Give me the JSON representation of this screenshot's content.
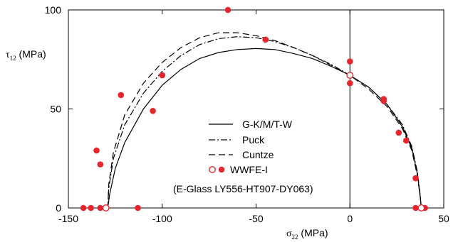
{
  "chart_data": {
    "type": "scatter",
    "title": "",
    "xlabel": {
      "symbol": "σ",
      "sub": "22",
      "unit": " (MPa)"
    },
    "ylabel": {
      "symbol": "τ",
      "sub": "12",
      "unit": " (MPa)"
    },
    "xlim": [
      -150,
      50
    ],
    "ylim": [
      0,
      100
    ],
    "xticks": [
      -150,
      -100,
      -50,
      0,
      50
    ],
    "yticks": [
      0,
      50,
      100
    ],
    "grid": false,
    "legend_position": "center",
    "series": [
      {
        "name": "G-K/M/T-W",
        "kind": "line",
        "style": "solid",
        "points": [
          [
            -129,
            0
          ],
          [
            -128,
            7
          ],
          [
            -125,
            20
          ],
          [
            -120,
            33
          ],
          [
            -110,
            50
          ],
          [
            -100,
            62
          ],
          [
            -90,
            70
          ],
          [
            -80,
            75.5
          ],
          [
            -70,
            78.5
          ],
          [
            -60,
            80
          ],
          [
            -50,
            80.5
          ],
          [
            -40,
            80
          ],
          [
            -30,
            78
          ],
          [
            -20,
            75.5
          ],
          [
            -10,
            71.5
          ],
          [
            0,
            67
          ],
          [
            10,
            61
          ],
          [
            20,
            52
          ],
          [
            28,
            41
          ],
          [
            33,
            30
          ],
          [
            36,
            17
          ],
          [
            37.5,
            5
          ],
          [
            38,
            0
          ]
        ]
      },
      {
        "name": "Puck",
        "kind": "line",
        "style": "dashdot",
        "points": [
          [
            -129,
            0
          ],
          [
            -128.5,
            10
          ],
          [
            -126,
            25
          ],
          [
            -120,
            42
          ],
          [
            -110,
            58
          ],
          [
            -100,
            69
          ],
          [
            -90,
            77
          ],
          [
            -80,
            82.5
          ],
          [
            -70,
            85.5
          ],
          [
            -60,
            86.5
          ],
          [
            -50,
            86
          ],
          [
            -40,
            84
          ],
          [
            -30,
            81
          ],
          [
            -20,
            77
          ],
          [
            -10,
            72.5
          ],
          [
            0,
            67
          ],
          [
            10,
            61
          ],
          [
            20,
            52
          ],
          [
            28,
            42
          ],
          [
            33,
            31
          ],
          [
            36,
            18
          ],
          [
            37.5,
            6
          ],
          [
            38,
            0
          ]
        ]
      },
      {
        "name": "Cuntze",
        "kind": "line",
        "style": "dashed",
        "points": [
          [
            -129,
            0
          ],
          [
            -128.5,
            12
          ],
          [
            -126,
            28
          ],
          [
            -120,
            47
          ],
          [
            -110,
            63
          ],
          [
            -100,
            73.5
          ],
          [
            -90,
            81
          ],
          [
            -80,
            86
          ],
          [
            -70,
            88.5
          ],
          [
            -60,
            88.5
          ],
          [
            -50,
            87
          ],
          [
            -40,
            84.5
          ],
          [
            -30,
            81
          ],
          [
            -20,
            77
          ],
          [
            -10,
            72
          ],
          [
            0,
            67
          ],
          [
            10,
            60
          ],
          [
            20,
            51
          ],
          [
            28,
            40
          ],
          [
            33,
            29
          ],
          [
            36,
            16
          ],
          [
            37.5,
            5
          ],
          [
            38,
            0
          ]
        ]
      },
      {
        "name": "WWFE-I",
        "kind": "markers",
        "filled": [
          [
            -65,
            100
          ],
          [
            -45,
            85
          ],
          [
            -100,
            67
          ],
          [
            -122,
            57
          ],
          [
            -105,
            49
          ],
          [
            -135,
            29
          ],
          [
            -133,
            22
          ],
          [
            -142,
            0
          ],
          [
            -138,
            0
          ],
          [
            -133,
            0
          ],
          [
            -113,
            0
          ],
          [
            0,
            74
          ],
          [
            0,
            63
          ],
          [
            18,
            55
          ],
          [
            18,
            54
          ],
          [
            26,
            38
          ],
          [
            30,
            34
          ],
          [
            35,
            15
          ],
          [
            35,
            0
          ],
          [
            40,
            0
          ]
        ],
        "hollow": [
          [
            -130,
            0
          ],
          [
            0,
            67
          ],
          [
            38,
            0
          ]
        ]
      }
    ],
    "annotation": "(E-Glass LY556-HT907-DY063)"
  }
}
